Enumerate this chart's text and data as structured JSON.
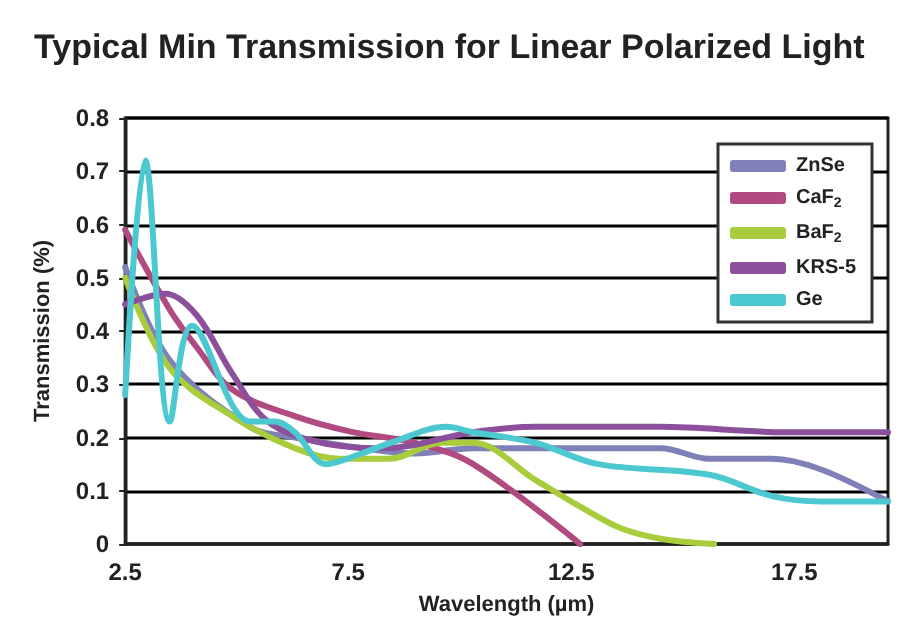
{
  "chart_data": {
    "type": "line",
    "title": "Typical Min Transmission for Linear Polarized Light",
    "xlabel": "Wavelength (µm)",
    "ylabel": "Transmission (%)",
    "xlim": [
      2.5,
      19.6
    ],
    "xticks": [
      2.5,
      7.5,
      12.5,
      17.5
    ],
    "ylim": [
      0,
      0.8
    ],
    "yticks": [
      0,
      0.1,
      0.2,
      0.3,
      0.4,
      0.5,
      0.6,
      0.7,
      0.8
    ],
    "grid": "y",
    "legend": "top right",
    "marker": "none",
    "line_style": "solid",
    "series": [
      {
        "name": "ZnSe",
        "color": "#8080b8",
        "x": [
          2.5,
          3.5,
          5.3,
          6.3,
          7.8,
          9.0,
          10.3,
          13.1,
          14.5,
          15.6,
          17.0,
          18.1,
          19.6
        ],
        "values": [
          0.52,
          0.345,
          0.22,
          0.2,
          0.18,
          0.17,
          0.18,
          0.18,
          0.18,
          0.16,
          0.16,
          0.14,
          0.08
        ]
      },
      {
        "name": "CaF$_{2}$",
        "color": "#b04a80",
        "x": [
          2.5,
          3.5,
          4.1,
          4.9,
          6.3,
          7.6,
          9.0,
          10.3,
          12.7
        ],
        "values": [
          0.59,
          0.44,
          0.37,
          0.29,
          0.24,
          0.21,
          0.19,
          0.15,
          0.0
        ]
      },
      {
        "name": "BaF$_{2}$",
        "color": "#a8cc3c",
        "x": [
          2.5,
          3.5,
          4.9,
          6.3,
          7.3,
          8.4,
          9.6,
          10.3,
          11.7,
          12.7,
          13.6,
          14.5,
          15.7
        ],
        "values": [
          0.5,
          0.33,
          0.24,
          0.18,
          0.16,
          0.16,
          0.19,
          0.19,
          0.12,
          0.07,
          0.03,
          0.01,
          0.0
        ]
      },
      {
        "name": "KRS-5",
        "color": "#8c4f9c",
        "x": [
          2.5,
          3.4,
          4.1,
          4.9,
          5.7,
          6.9,
          8.3,
          10.3,
          11.7,
          14.5,
          17.3,
          19.6
        ],
        "values": [
          0.45,
          0.47,
          0.43,
          0.32,
          0.23,
          0.19,
          0.18,
          0.21,
          0.22,
          0.22,
          0.21,
          0.21
        ]
      },
      {
        "name": "Ge",
        "color": "#4cc8d0",
        "x": [
          2.5,
          2.95,
          3.5,
          4.0,
          5.3,
          5.85,
          6.3,
          7.0,
          7.8,
          8.45,
          9.7,
          10.3,
          11.7,
          13.1,
          15.6,
          17.0,
          18.1,
          19.6
        ],
        "values": [
          0.28,
          0.72,
          0.23,
          0.41,
          0.23,
          0.23,
          0.21,
          0.15,
          0.17,
          0.19,
          0.22,
          0.21,
          0.19,
          0.15,
          0.13,
          0.09,
          0.08,
          0.08
        ]
      }
    ]
  }
}
